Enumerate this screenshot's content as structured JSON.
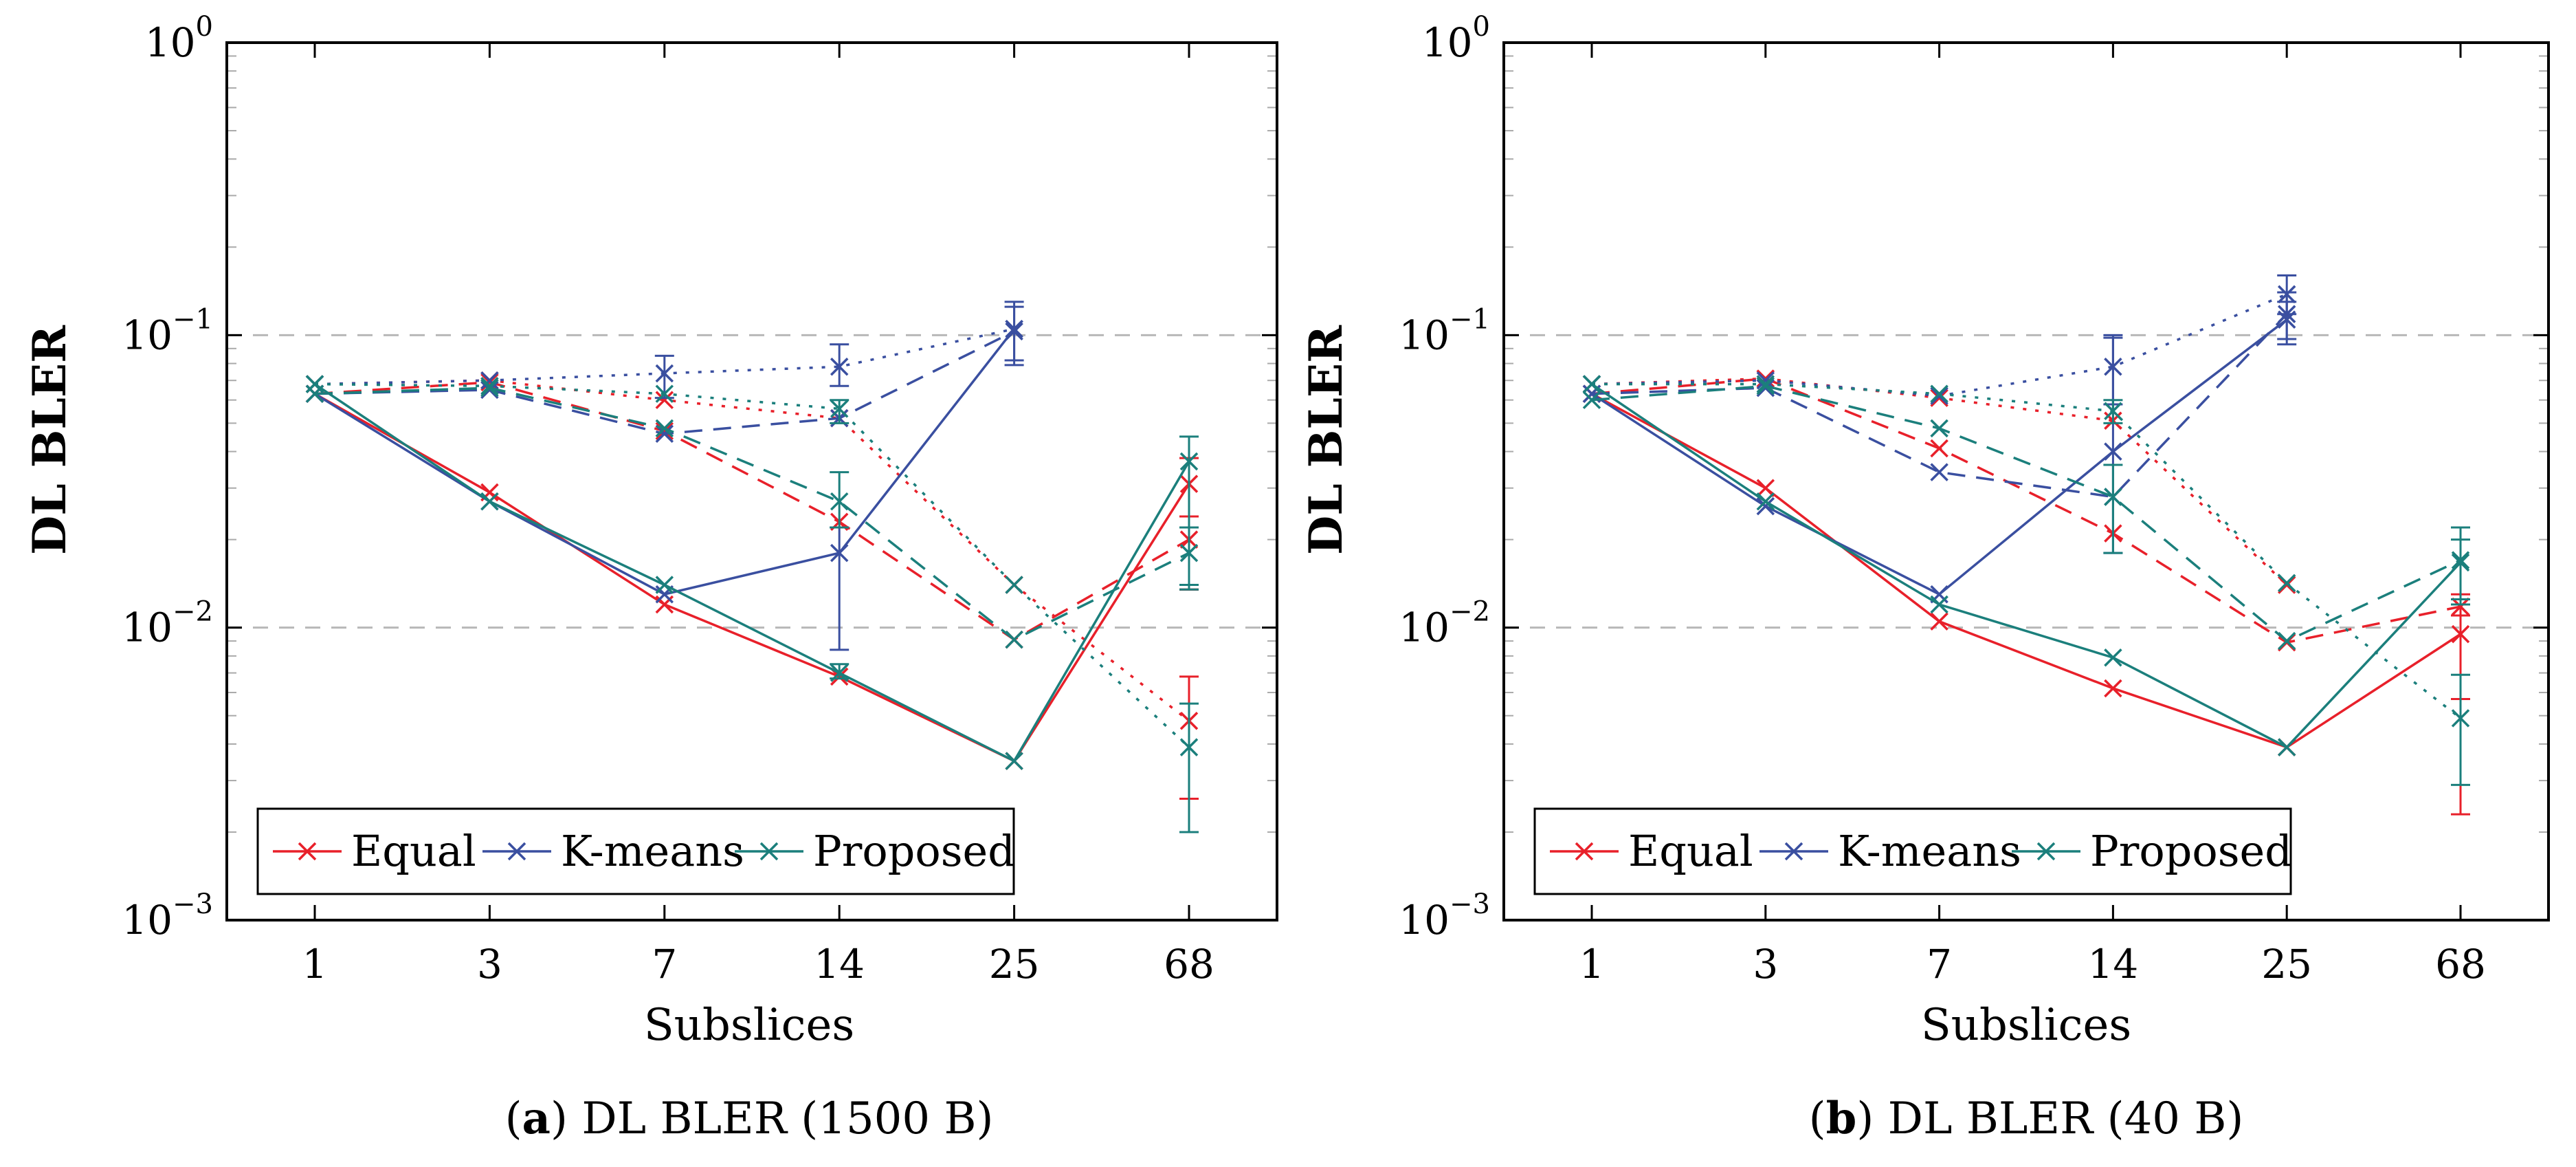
{
  "chart_data": [
    {
      "type": "line",
      "panel_label": "a",
      "caption": "DL BLER (1500 B)",
      "xlabel": "Subslices",
      "ylabel": "DL BLER",
      "y_scale": "log",
      "ylim": [
        0.001,
        1
      ],
      "x_categories": [
        "1",
        "3",
        "7",
        "14",
        "25",
        "68"
      ],
      "y_tick_labels": [
        "10",
        "10",
        "10",
        "10"
      ],
      "y_tick_exponents": [
        "−3",
        "−2",
        "−1",
        "0"
      ],
      "reference_lines": [
        0.1,
        0.01
      ],
      "legend": {
        "placement": "bottom-left",
        "entries": [
          "Equal",
          "K-means",
          "Proposed"
        ]
      },
      "line_styles": {
        "solid": "solid",
        "dashed": "dashed",
        "dotted": "dotted"
      },
      "series": [
        {
          "name": "Equal",
          "color": "#e8202a",
          "style": "solid",
          "values": [
            0.063,
            0.029,
            0.012,
            0.0068,
            0.0035,
            0.031
          ],
          "err_low": [
            null,
            null,
            null,
            null,
            null,
            0.0135
          ],
          "err_high": [
            null,
            null,
            null,
            null,
            null,
            0.038
          ]
        },
        {
          "name": "Equal",
          "color": "#e8202a",
          "style": "dashed",
          "values": [
            0.063,
            0.069,
            0.047,
            0.023,
            0.0091,
            0.02
          ],
          "err_low": [
            null,
            null,
            null,
            null,
            null,
            0.0135
          ],
          "err_high": [
            null,
            null,
            null,
            null,
            null,
            0.024
          ]
        },
        {
          "name": "Equal",
          "color": "#e8202a",
          "style": "dotted",
          "values": [
            0.068,
            0.07,
            0.06,
            0.052,
            0.014,
            0.0048
          ],
          "err_low": [
            null,
            null,
            null,
            null,
            null,
            0.0026
          ],
          "err_high": [
            null,
            null,
            null,
            null,
            null,
            0.0068
          ]
        },
        {
          "name": "K-means",
          "color": "#3a4fa0",
          "style": "solid",
          "values": [
            0.063,
            0.027,
            0.013,
            0.018,
            0.105,
            null
          ],
          "err_low": [
            null,
            null,
            null,
            0.0084,
            0.079,
            null
          ],
          "err_high": [
            null,
            null,
            null,
            0.022,
            0.125,
            null
          ]
        },
        {
          "name": "K-means",
          "color": "#3a4fa0",
          "style": "dashed",
          "values": [
            0.063,
            0.065,
            0.046,
            0.052,
            0.103,
            null
          ],
          "err_low": [
            null,
            null,
            null,
            null,
            0.082,
            null
          ],
          "err_high": [
            null,
            null,
            null,
            null,
            0.13,
            null
          ]
        },
        {
          "name": "K-means",
          "color": "#3a4fa0",
          "style": "dotted",
          "values": [
            0.068,
            0.07,
            0.074,
            0.078,
            0.105,
            null
          ],
          "err_low": [
            null,
            null,
            0.061,
            0.067,
            null,
            null
          ],
          "err_high": [
            null,
            null,
            0.085,
            0.093,
            null,
            null
          ]
        },
        {
          "name": "Proposed",
          "color": "#1b7f7c",
          "style": "solid",
          "values": [
            0.068,
            0.027,
            0.014,
            0.007,
            0.0035,
            0.037
          ],
          "err_low": [
            null,
            null,
            null,
            0.0067,
            null,
            0.0135
          ],
          "err_high": [
            null,
            null,
            null,
            0.0075,
            null,
            0.045
          ]
        },
        {
          "name": "Proposed",
          "color": "#1b7f7c",
          "style": "dashed",
          "values": [
            0.063,
            0.066,
            0.048,
            0.027,
            0.0091,
            0.018
          ],
          "err_low": [
            null,
            null,
            null,
            0.022,
            null,
            0.014
          ],
          "err_high": [
            null,
            null,
            null,
            0.034,
            null,
            0.022
          ]
        },
        {
          "name": "Proposed",
          "color": "#1b7f7c",
          "style": "dotted",
          "values": [
            0.068,
            0.067,
            0.063,
            0.056,
            0.014,
            0.0039
          ],
          "err_low": [
            null,
            null,
            null,
            0.05,
            null,
            0.002
          ],
          "err_high": [
            null,
            null,
            null,
            0.06,
            null,
            0.0055
          ]
        }
      ]
    },
    {
      "type": "line",
      "panel_label": "b",
      "caption": "DL BLER (40 B)",
      "xlabel": "Subslices",
      "ylabel": "DL BLER",
      "y_scale": "log",
      "ylim": [
        0.001,
        1
      ],
      "x_categories": [
        "1",
        "3",
        "7",
        "14",
        "25",
        "68"
      ],
      "y_tick_labels": [
        "10",
        "10",
        "10",
        "10"
      ],
      "y_tick_exponents": [
        "−3",
        "−2",
        "−1",
        "0"
      ],
      "reference_lines": [
        0.1,
        0.01
      ],
      "legend": {
        "placement": "bottom-left",
        "entries": [
          "Equal",
          "K-means",
          "Proposed"
        ]
      },
      "line_styles": {
        "solid": "solid",
        "dashed": "dashed",
        "dotted": "dotted"
      },
      "series": [
        {
          "name": "Equal",
          "color": "#e8202a",
          "style": "solid",
          "values": [
            0.063,
            0.03,
            0.0105,
            0.0062,
            0.0039,
            0.0095
          ],
          "err_low": [
            null,
            null,
            null,
            null,
            null,
            0.0023
          ],
          "err_high": [
            null,
            null,
            null,
            null,
            null,
            0.011
          ]
        },
        {
          "name": "Equal",
          "color": "#e8202a",
          "style": "dashed",
          "values": [
            0.063,
            0.071,
            0.041,
            0.021,
            0.0089,
            0.0118
          ],
          "err_low": [
            null,
            null,
            null,
            null,
            null,
            0.0057
          ],
          "err_high": [
            null,
            null,
            null,
            null,
            null,
            0.013
          ]
        },
        {
          "name": "Equal",
          "color": "#e8202a",
          "style": "dotted",
          "values": [
            0.068,
            0.071,
            0.061,
            0.051,
            0.014,
            null
          ],
          "err_low": [
            null,
            null,
            null,
            null,
            null,
            null
          ],
          "err_high": [
            null,
            null,
            null,
            null,
            null,
            null
          ]
        },
        {
          "name": "K-means",
          "color": "#3a4fa0",
          "style": "solid",
          "values": [
            0.063,
            0.026,
            0.013,
            0.04,
            0.113,
            null
          ],
          "err_low": [
            null,
            null,
            null,
            0.018,
            0.093,
            null
          ],
          "err_high": [
            null,
            null,
            null,
            0.1,
            0.13,
            null
          ]
        },
        {
          "name": "K-means",
          "color": "#3a4fa0",
          "style": "dashed",
          "values": [
            0.063,
            0.066,
            0.034,
            0.028,
            0.118,
            null
          ],
          "err_low": [
            null,
            null,
            null,
            null,
            0.097,
            null
          ],
          "err_high": [
            null,
            null,
            null,
            null,
            0.14,
            null
          ]
        },
        {
          "name": "K-means",
          "color": "#3a4fa0",
          "style": "dotted",
          "values": [
            0.068,
            0.07,
            0.062,
            0.078,
            0.138,
            null
          ],
          "err_low": [
            null,
            null,
            null,
            0.058,
            0.118,
            null
          ],
          "err_high": [
            null,
            null,
            null,
            0.098,
            0.16,
            null
          ]
        },
        {
          "name": "Proposed",
          "color": "#1b7f7c",
          "style": "solid",
          "values": [
            0.068,
            0.027,
            0.012,
            0.0079,
            0.0039,
            0.0167
          ],
          "err_low": [
            null,
            null,
            null,
            null,
            null,
            0.012
          ],
          "err_high": [
            null,
            null,
            null,
            null,
            null,
            0.022
          ]
        },
        {
          "name": "Proposed",
          "color": "#1b7f7c",
          "style": "dashed",
          "values": [
            0.06,
            0.067,
            0.048,
            0.028,
            0.009,
            0.017
          ],
          "err_low": [
            null,
            null,
            null,
            0.018,
            null,
            0.0125
          ],
          "err_high": [
            null,
            null,
            null,
            0.036,
            null,
            0.02
          ]
        },
        {
          "name": "Proposed",
          "color": "#1b7f7c",
          "style": "dotted",
          "values": [
            0.068,
            0.068,
            0.063,
            0.055,
            0.0142,
            0.0049
          ],
          "err_low": [
            null,
            null,
            null,
            0.05,
            null,
            0.0029
          ],
          "err_high": [
            null,
            null,
            null,
            0.06,
            null,
            0.0069
          ]
        }
      ]
    }
  ]
}
